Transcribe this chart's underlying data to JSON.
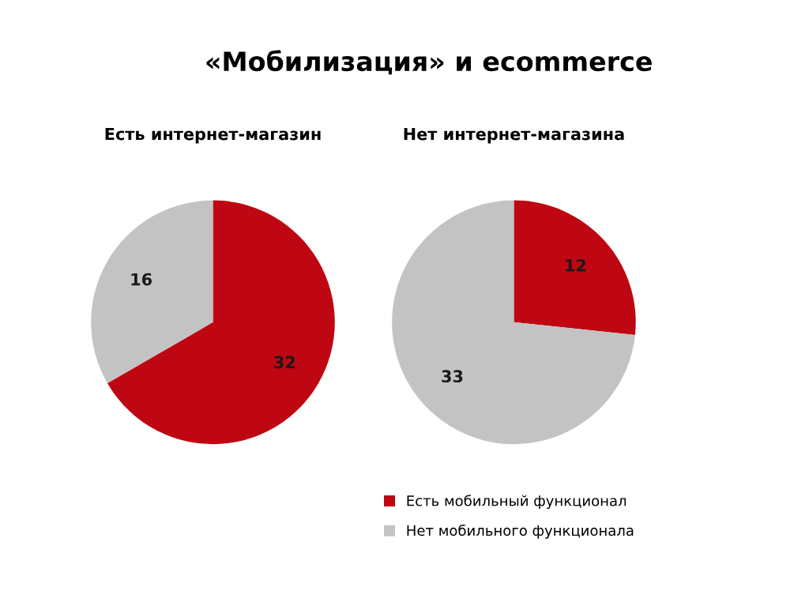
{
  "chart_data": [
    {
      "type": "pie",
      "title": "«Мобилизация» и ecommerce",
      "subtitle": "Есть интернет-магазин",
      "categories": [
        "Есть мобильный функционал",
        "Нет мобильного функционала"
      ],
      "values": [
        32,
        16
      ],
      "colors": [
        "#be0712",
        "#c3c3c3"
      ],
      "data_labels": true,
      "legend": "bottom right"
    },
    {
      "type": "pie",
      "subtitle": "Нет интернет-магазина",
      "categories": [
        null,
        null
      ],
      "values": [
        12,
        33
      ],
      "colors": [
        "#be0712",
        "#c3c3c3"
      ],
      "data_labels": true
    }
  ]
}
